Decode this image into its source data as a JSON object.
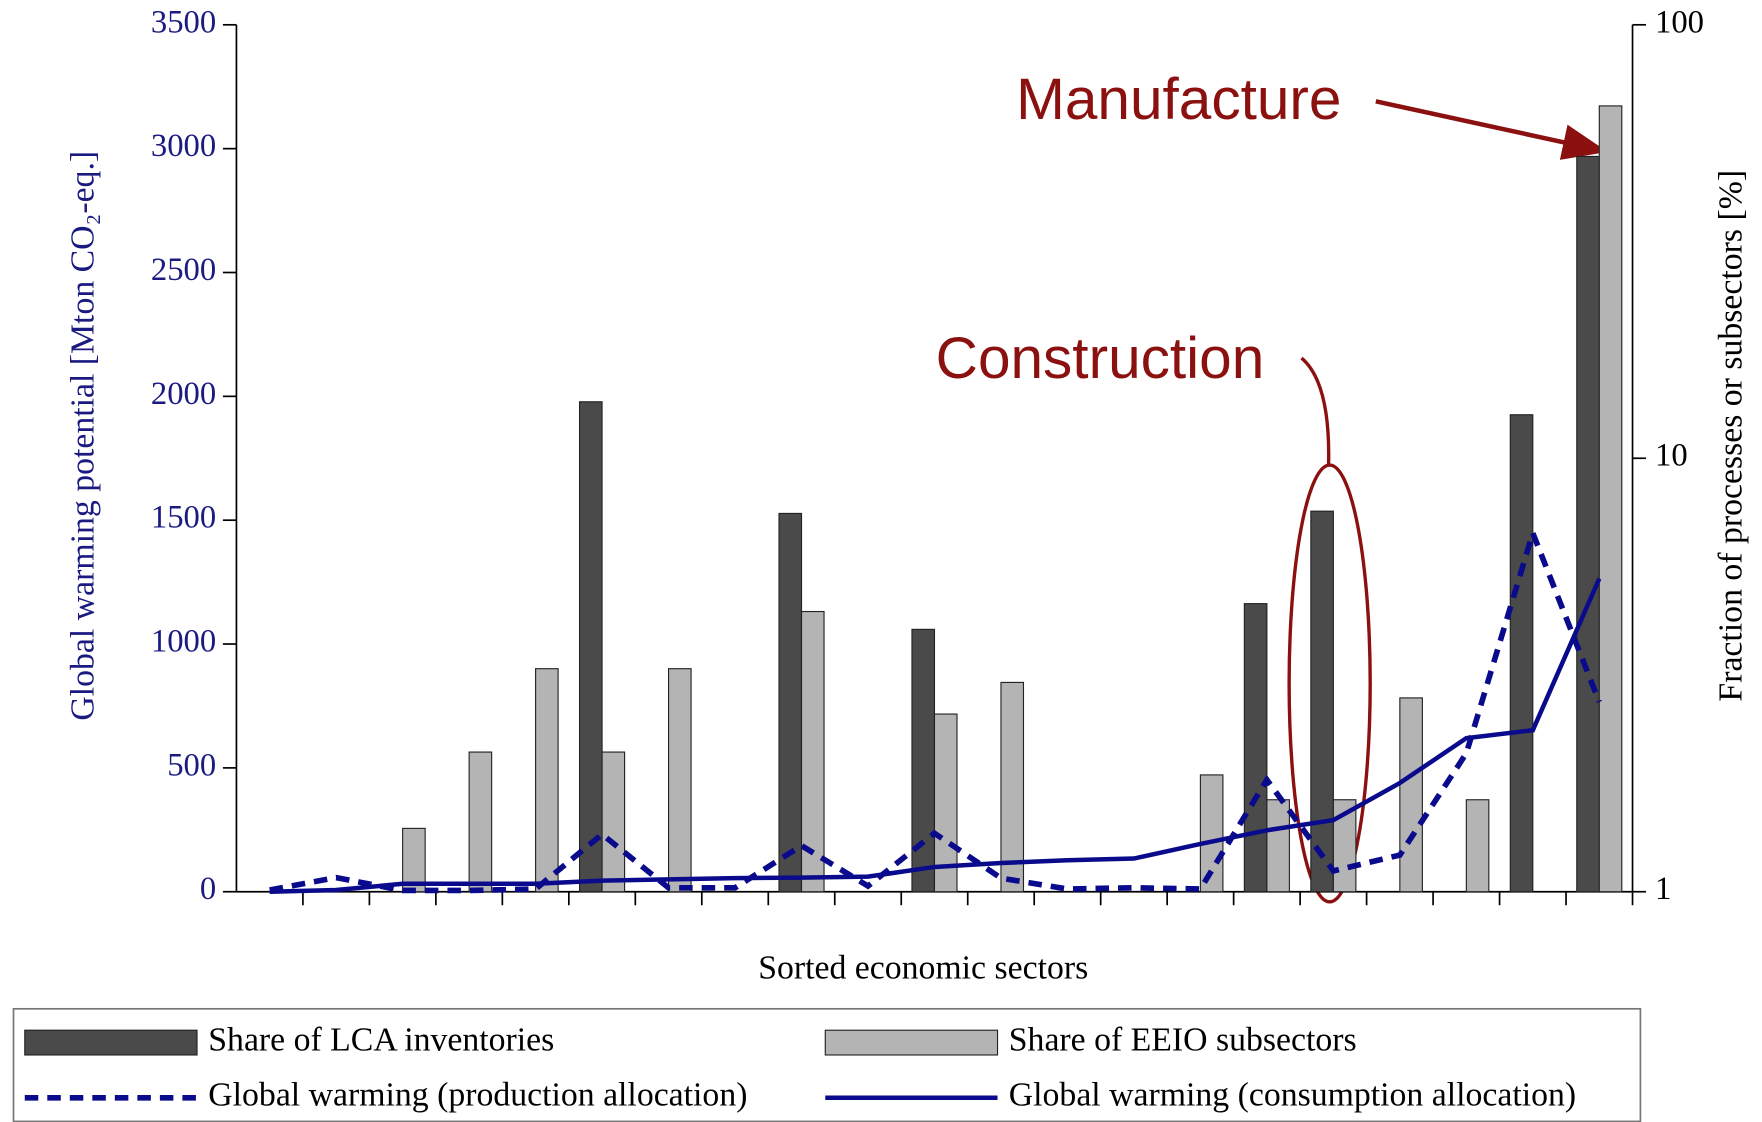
{
  "chart_data": {
    "type": "bar",
    "x_label": "Sorted economic sectors",
    "y_label": "Global warming potential  [Mton CO₂-eq.]",
    "y2_label": "Fraction of processes or subsectors  [%]",
    "categories": [
      null,
      null,
      null,
      null,
      null,
      null,
      null,
      null,
      null,
      null,
      null,
      null,
      null,
      null,
      null,
      null,
      null,
      null,
      null,
      null,
      null
    ],
    "ylim": [
      0,
      3500
    ],
    "yticks": [
      0,
      500,
      1000,
      1500,
      2000,
      2500,
      3000,
      3500
    ],
    "y2lim": [
      1,
      100
    ],
    "y2ticks": [
      1,
      10,
      100
    ],
    "y2_log": true,
    "series": [
      {
        "name": "Share of LCA  inventories",
        "type": "bar",
        "axis": "y2",
        "color": "#4a4a4a",
        "values": [
          null,
          null,
          null,
          null,
          null,
          13.5,
          null,
          null,
          7.46,
          null,
          4.03,
          null,
          null,
          null,
          null,
          4.62,
          7.55,
          null,
          null,
          12.6,
          49.7
        ]
      },
      {
        "name": "Share of EEIO subsectors",
        "type": "bar",
        "axis": "y2",
        "color": "#b4b4b4",
        "values": [
          null,
          null,
          1.4,
          2.1,
          3.27,
          2.1,
          3.27,
          null,
          4.43,
          null,
          2.57,
          3.04,
          null,
          null,
          1.86,
          1.63,
          1.63,
          2.8,
          1.63,
          null,
          65.0
        ]
      },
      {
        "name": "Global warming (production allocation)",
        "type": "line",
        "style": "dashed",
        "color": "#0a0a8c",
        "values": [
          7,
          57,
          5,
          5,
          11,
          232,
          16,
          16,
          186,
          23,
          236,
          55,
          11,
          16,
          11,
          452,
          84,
          148,
          559,
          1448,
          766
        ]
      },
      {
        "name": "Global warming (consumption allocation)",
        "type": "line",
        "style": "solid",
        "color": "#0a0a8c",
        "values": [
          0,
          7,
          32,
          32,
          32,
          45,
          50,
          55,
          57,
          61,
          100,
          116,
          127,
          134,
          193,
          248,
          289,
          439,
          620,
          652,
          1264
        ]
      }
    ],
    "annotations": [
      {
        "text": "Manufacture",
        "color": "#8b1010"
      },
      {
        "text": "Construction",
        "color": "#8b1010"
      }
    ]
  }
}
